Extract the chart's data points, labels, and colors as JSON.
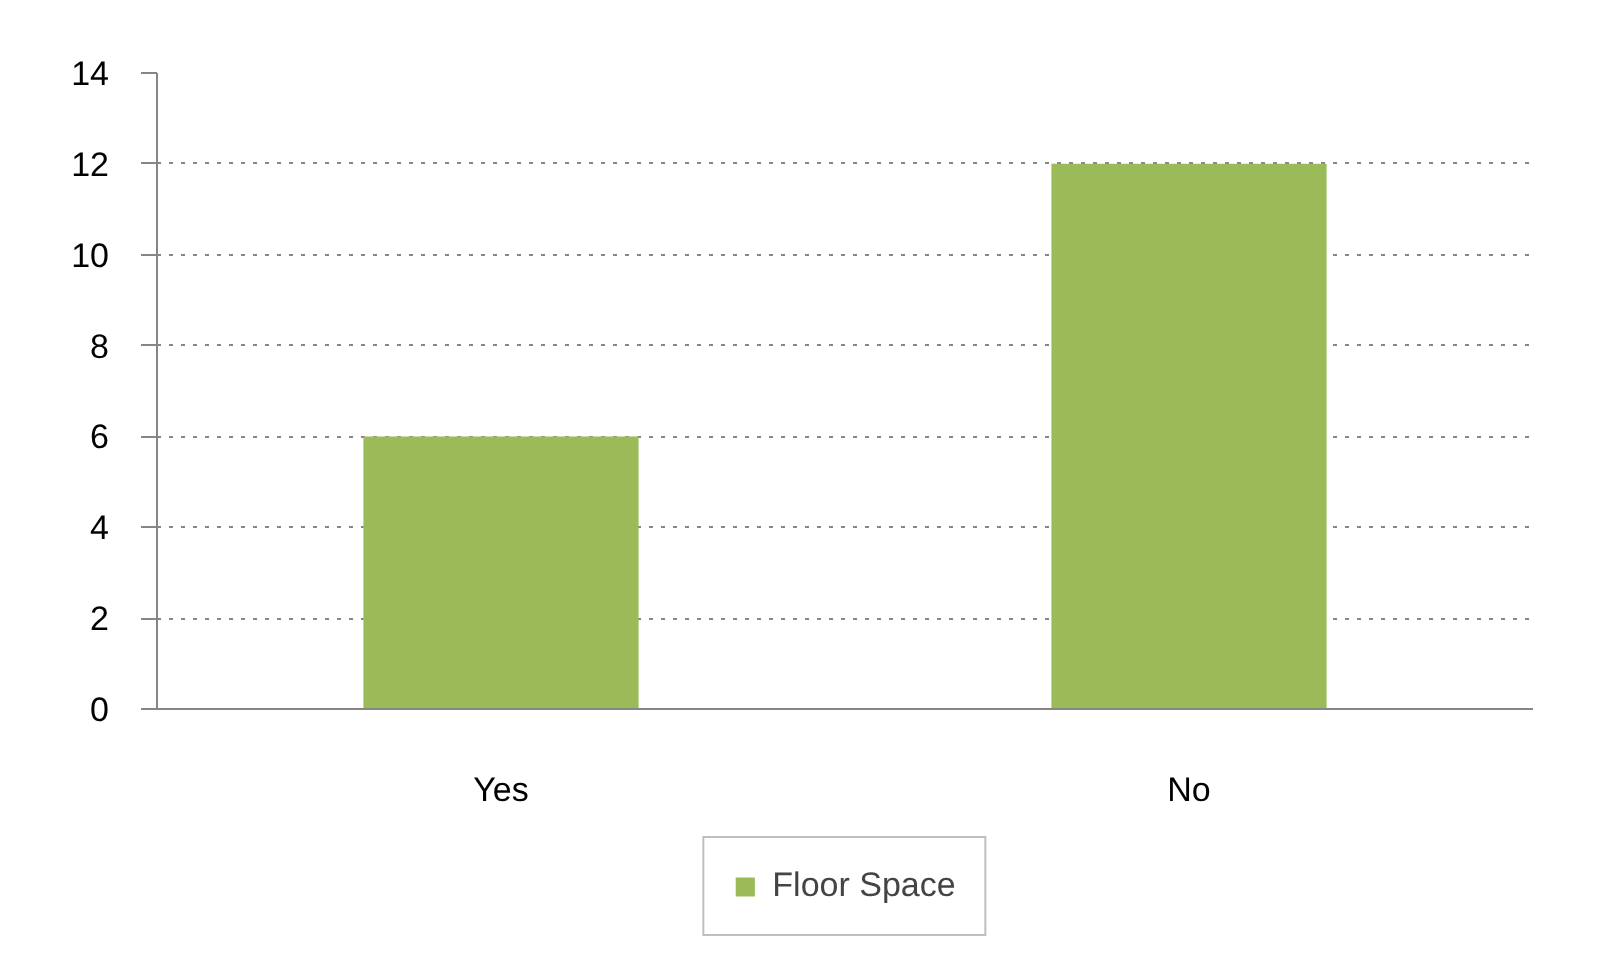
{
  "chart_data": {
    "type": "bar",
    "categories": [
      "Yes",
      "No"
    ],
    "series": [
      {
        "name": "Floor Space",
        "color": "#9bbb59",
        "values": [
          6,
          12
        ]
      }
    ],
    "ylim": [
      0,
      14
    ],
    "yticks": [
      0,
      2,
      4,
      6,
      8,
      10,
      12,
      14
    ],
    "grid": "y",
    "legend": "bottom"
  }
}
